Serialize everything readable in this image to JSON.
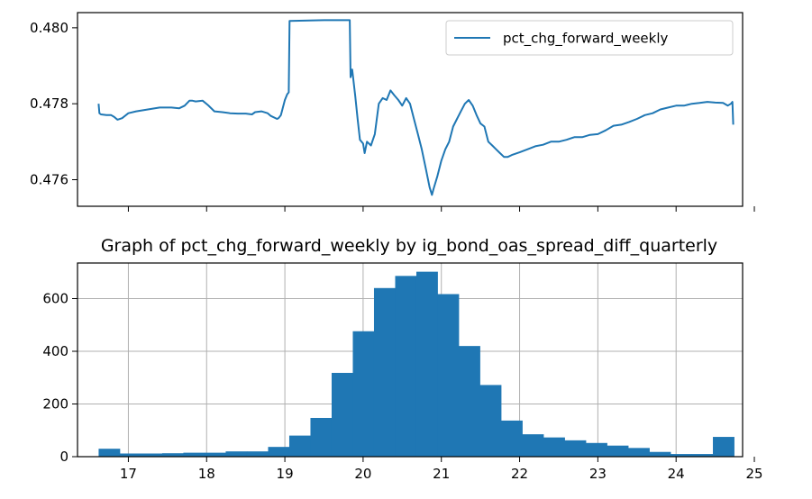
{
  "chart_data": [
    {
      "type": "line",
      "title": "",
      "xlabel": "",
      "ylabel": "",
      "xlim": [
        16.35,
        24.85
      ],
      "ylim": [
        0.4753,
        0.4804
      ],
      "yticks": [
        0.476,
        0.478,
        0.48
      ],
      "ytick_labels": [
        "0.476",
        "0.478",
        "0.480"
      ],
      "xticks": [
        17,
        18,
        19,
        20,
        21,
        22,
        23,
        24,
        25
      ],
      "xtick_labels_shown": false,
      "grid": false,
      "legend": {
        "placement": "top-right"
      },
      "series": [
        {
          "name": "pct_chg_forward_weekly",
          "color": "#1f77b4",
          "x": [
            16.62,
            16.63,
            16.65,
            16.72,
            16.78,
            16.82,
            16.86,
            16.92,
            17.0,
            17.1,
            17.25,
            17.4,
            17.55,
            17.65,
            17.72,
            17.78,
            17.82,
            17.86,
            17.95,
            18.02,
            18.1,
            18.2,
            18.3,
            18.4,
            18.5,
            18.58,
            18.62,
            18.7,
            18.78,
            18.82,
            18.9,
            18.92,
            18.95,
            19.0,
            19.03,
            19.05,
            19.06,
            19.5,
            19.83,
            19.84,
            19.86,
            19.88,
            19.9,
            19.93,
            19.96,
            20.0,
            20.02,
            20.05,
            20.1,
            20.15,
            20.2,
            20.25,
            20.3,
            20.35,
            20.4,
            20.45,
            20.5,
            20.55,
            20.6,
            20.65,
            20.7,
            20.75,
            20.8,
            20.85,
            20.88,
            20.9,
            20.95,
            21.0,
            21.05,
            21.1,
            21.15,
            21.2,
            21.25,
            21.3,
            21.35,
            21.4,
            21.45,
            21.5,
            21.55,
            21.6,
            21.65,
            21.7,
            21.75,
            21.8,
            21.85,
            21.9,
            22.0,
            22.1,
            22.2,
            22.3,
            22.4,
            22.5,
            22.6,
            22.7,
            22.8,
            22.9,
            23.0,
            23.1,
            23.2,
            23.3,
            23.4,
            23.5,
            23.6,
            23.7,
            23.8,
            23.9,
            24.0,
            24.1,
            24.2,
            24.3,
            24.4,
            24.5,
            24.6,
            24.66,
            24.7,
            24.72,
            24.73
          ],
          "y": [
            0.478,
            0.47775,
            0.47772,
            0.4777,
            0.4777,
            0.47765,
            0.47758,
            0.47762,
            0.47775,
            0.4778,
            0.47785,
            0.4779,
            0.4779,
            0.47788,
            0.47795,
            0.47808,
            0.47808,
            0.47806,
            0.47808,
            0.47796,
            0.4778,
            0.47778,
            0.47775,
            0.47774,
            0.47774,
            0.47772,
            0.47778,
            0.4778,
            0.47775,
            0.47768,
            0.4776,
            0.47762,
            0.4777,
            0.4781,
            0.47825,
            0.4783,
            0.48018,
            0.4802,
            0.4802,
            0.4787,
            0.4789,
            0.47855,
            0.4782,
            0.4776,
            0.47705,
            0.47695,
            0.4767,
            0.477,
            0.4769,
            0.4772,
            0.478,
            0.47815,
            0.4781,
            0.47835,
            0.47822,
            0.4781,
            0.47795,
            0.47815,
            0.478,
            0.4776,
            0.4772,
            0.4768,
            0.4763,
            0.4758,
            0.4756,
            0.47575,
            0.4761,
            0.4765,
            0.4768,
            0.477,
            0.4774,
            0.4776,
            0.4778,
            0.478,
            0.4781,
            0.47795,
            0.4777,
            0.47748,
            0.4774,
            0.477,
            0.4769,
            0.4768,
            0.4767,
            0.4766,
            0.4766,
            0.47665,
            0.47672,
            0.4768,
            0.47688,
            0.47692,
            0.477,
            0.477,
            0.47705,
            0.47712,
            0.47712,
            0.47718,
            0.4772,
            0.4773,
            0.47742,
            0.47745,
            0.47752,
            0.4776,
            0.4777,
            0.47775,
            0.47785,
            0.4779,
            0.47795,
            0.47795,
            0.478,
            0.47802,
            0.47805,
            0.47803,
            0.47802,
            0.47795,
            0.478,
            0.47805,
            0.47745
          ]
        }
      ]
    },
    {
      "type": "bar",
      "title": "Graph of pct_chg_forward_weekly by ig_bond_oas_spread_diff_quarterly",
      "xlabel": "",
      "ylabel": "",
      "xlim": [
        16.35,
        24.85
      ],
      "ylim": [
        0,
        735
      ],
      "yticks": [
        0,
        200,
        400,
        600
      ],
      "xticks": [
        17,
        18,
        19,
        20,
        21,
        22,
        23,
        24,
        25
      ],
      "grid": true,
      "bin_start": 16.62,
      "bin_width": 0.2707,
      "color": "#1f77b4",
      "values": [
        30,
        12,
        12,
        13,
        15,
        15,
        20,
        20,
        37,
        80,
        147,
        318,
        476,
        640,
        686,
        702,
        617,
        420,
        272,
        137,
        85,
        73,
        62,
        52,
        42,
        33,
        18,
        10,
        10,
        75
      ]
    }
  ]
}
